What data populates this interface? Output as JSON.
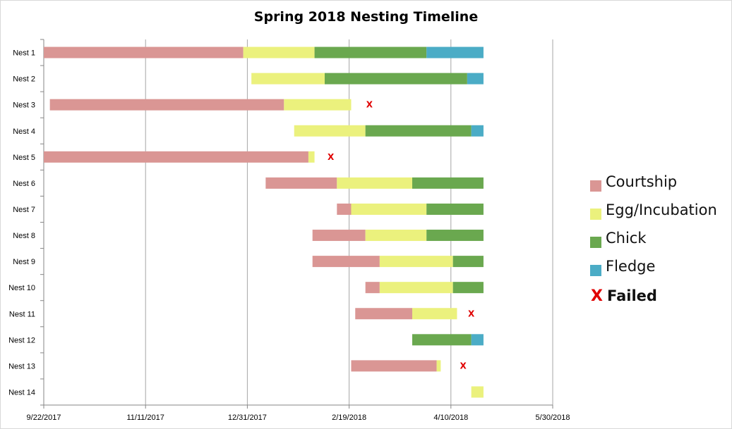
{
  "chart_data": {
    "type": "bar",
    "orientation": "horizontal",
    "stacked": true,
    "title": "Spring 2018 Nesting Timeline",
    "xlabel": "",
    "ylabel": "",
    "x_axis_type": "date",
    "xlim": [
      "2017-09-22",
      "2018-05-30"
    ],
    "x_tick_labels": [
      "9/22/2017",
      "11/11/2017",
      "12/31/2017",
      "2/19/2018",
      "4/10/2018",
      "5/30/2018"
    ],
    "grid": "vertical",
    "legend_position": "right",
    "categories": [
      "Nest 1",
      "Nest 2",
      "Nest 3",
      "Nest 4",
      "Nest 5",
      "Nest 6",
      "Nest 7",
      "Nest 8",
      "Nest 9",
      "Nest 10",
      "Nest 11",
      "Nest 12",
      "Nest 13",
      "Nest 14"
    ],
    "series": [
      {
        "name": "Courtship",
        "color": "#da9694"
      },
      {
        "name": "Egg/Incubation",
        "color": "#ebf17d"
      },
      {
        "name": "Chick",
        "color": "#6aa84f"
      },
      {
        "name": "Fledge",
        "color": "#4bacc6"
      }
    ],
    "failed_marker": {
      "label": "X",
      "legend_label": "Failed",
      "color": "#e00000"
    },
    "nests": [
      {
        "nest": "Nest 1",
        "segments": [
          [
            "Courtship",
            "2017-09-22",
            "2017-12-29"
          ],
          [
            "Egg/Incubation",
            "2017-12-29",
            "2018-02-02"
          ],
          [
            "Chick",
            "2018-02-02",
            "2018-03-29"
          ],
          [
            "Fledge",
            "2018-03-29",
            "2018-04-26"
          ]
        ],
        "failed": null
      },
      {
        "nest": "Nest 2",
        "segments": [
          [
            "Egg/Incubation",
            "2018-01-02",
            "2018-02-07"
          ],
          [
            "Chick",
            "2018-02-07",
            "2018-04-18"
          ],
          [
            "Fledge",
            "2018-04-18",
            "2018-04-26"
          ]
        ],
        "failed": null
      },
      {
        "nest": "Nest 3",
        "segments": [
          [
            "Courtship",
            "2017-09-25",
            "2018-01-18"
          ],
          [
            "Egg/Incubation",
            "2018-01-18",
            "2018-02-20"
          ]
        ],
        "failed": "2018-03-01"
      },
      {
        "nest": "Nest 4",
        "segments": [
          [
            "Egg/Incubation",
            "2018-01-23",
            "2018-02-27"
          ],
          [
            "Chick",
            "2018-02-27",
            "2018-04-20"
          ],
          [
            "Fledge",
            "2018-04-20",
            "2018-04-26"
          ]
        ],
        "failed": null
      },
      {
        "nest": "Nest 5",
        "segments": [
          [
            "Courtship",
            "2017-09-22",
            "2018-01-30"
          ],
          [
            "Egg/Incubation",
            "2018-01-30",
            "2018-02-02"
          ]
        ],
        "failed": "2018-02-10"
      },
      {
        "nest": "Nest 6",
        "segments": [
          [
            "Courtship",
            "2018-01-09",
            "2018-02-13"
          ],
          [
            "Egg/Incubation",
            "2018-02-13",
            "2018-03-22"
          ],
          [
            "Chick",
            "2018-03-22",
            "2018-04-26"
          ]
        ],
        "failed": null
      },
      {
        "nest": "Nest 7",
        "segments": [
          [
            "Courtship",
            "2018-02-13",
            "2018-02-20"
          ],
          [
            "Egg/Incubation",
            "2018-02-20",
            "2018-03-29"
          ],
          [
            "Chick",
            "2018-03-29",
            "2018-04-26"
          ]
        ],
        "failed": null
      },
      {
        "nest": "Nest 8",
        "segments": [
          [
            "Courtship",
            "2018-02-01",
            "2018-02-27"
          ],
          [
            "Egg/Incubation",
            "2018-02-27",
            "2018-03-29"
          ],
          [
            "Chick",
            "2018-03-29",
            "2018-04-26"
          ]
        ],
        "failed": null
      },
      {
        "nest": "Nest 9",
        "segments": [
          [
            "Courtship",
            "2018-02-01",
            "2018-03-06"
          ],
          [
            "Egg/Incubation",
            "2018-03-06",
            "2018-04-11"
          ],
          [
            "Chick",
            "2018-04-11",
            "2018-04-26"
          ]
        ],
        "failed": null
      },
      {
        "nest": "Nest 10",
        "segments": [
          [
            "Courtship",
            "2018-02-27",
            "2018-03-06"
          ],
          [
            "Egg/Incubation",
            "2018-03-06",
            "2018-04-11"
          ],
          [
            "Chick",
            "2018-04-11",
            "2018-04-26"
          ]
        ],
        "failed": null
      },
      {
        "nest": "Nest 11",
        "segments": [
          [
            "Courtship",
            "2018-02-22",
            "2018-03-22"
          ],
          [
            "Egg/Incubation",
            "2018-03-22",
            "2018-04-13"
          ]
        ],
        "failed": "2018-04-20"
      },
      {
        "nest": "Nest 12",
        "segments": [
          [
            "Chick",
            "2018-03-22",
            "2018-04-20"
          ],
          [
            "Fledge",
            "2018-04-20",
            "2018-04-26"
          ]
        ],
        "failed": null
      },
      {
        "nest": "Nest 13",
        "segments": [
          [
            "Courtship",
            "2018-02-20",
            "2018-04-03"
          ],
          [
            "Egg/Incubation",
            "2018-04-03",
            "2018-04-05"
          ]
        ],
        "failed": "2018-04-16"
      },
      {
        "nest": "Nest 14",
        "segments": [
          [
            "Egg/Incubation",
            "2018-04-20",
            "2018-04-26"
          ]
        ],
        "failed": null
      }
    ]
  }
}
